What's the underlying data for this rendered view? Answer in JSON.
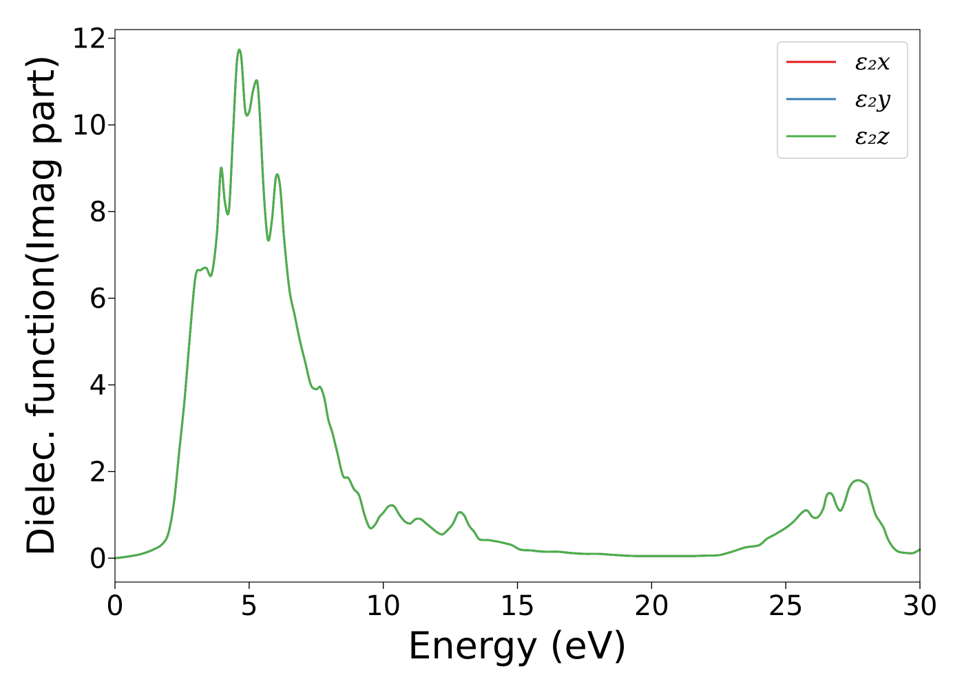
{
  "chart_data": {
    "type": "line",
    "title": "",
    "xlabel": "Energy (eV)",
    "ylabel": "Dielec. function(Imag part)",
    "xlim": [
      0,
      30
    ],
    "ylim": [
      -0.55,
      12.2
    ],
    "xticks": [
      0,
      5,
      10,
      15,
      20,
      25,
      30
    ],
    "yticks": [
      0,
      2,
      4,
      6,
      8,
      10,
      12
    ],
    "grid": false,
    "legend_position": "top-right",
    "x": [
      0,
      0.5,
      1.0,
      1.5,
      1.8,
      2.0,
      2.2,
      2.4,
      2.6,
      2.8,
      3.0,
      3.2,
      3.4,
      3.6,
      3.8,
      3.95,
      4.1,
      4.25,
      4.4,
      4.55,
      4.7,
      4.85,
      5.0,
      5.15,
      5.3,
      5.4,
      5.55,
      5.7,
      5.85,
      6.0,
      6.15,
      6.3,
      6.5,
      6.7,
      6.9,
      7.1,
      7.3,
      7.5,
      7.65,
      7.8,
      7.95,
      8.1,
      8.3,
      8.5,
      8.7,
      8.9,
      9.1,
      9.3,
      9.5,
      9.7,
      9.85,
      10.0,
      10.2,
      10.4,
      10.6,
      10.8,
      11.0,
      11.2,
      11.4,
      11.6,
      11.8,
      12.0,
      12.2,
      12.4,
      12.6,
      12.8,
      13.0,
      13.2,
      13.4,
      13.55,
      13.7,
      13.9,
      14.1,
      14.3,
      14.5,
      14.8,
      15.1,
      15.5,
      16.0,
      16.5,
      17.0,
      17.5,
      18.0,
      18.5,
      19.0,
      19.5,
      20.0,
      20.5,
      21.0,
      21.5,
      22.0,
      22.5,
      23.0,
      23.5,
      24.0,
      24.3,
      24.6,
      25.0,
      25.3,
      25.6,
      25.8,
      26.0,
      26.2,
      26.4,
      26.5,
      26.6,
      26.75,
      26.9,
      27.05,
      27.2,
      27.35,
      27.5,
      27.7,
      27.9,
      28.05,
      28.2,
      28.35,
      28.5,
      28.65,
      28.8,
      29.0,
      29.2,
      29.5,
      29.75,
      30.0
    ],
    "series": [
      {
        "name": "ε₂x",
        "color": "#e41a1c",
        "values": [
          0.0,
          0.04,
          0.1,
          0.22,
          0.35,
          0.6,
          1.3,
          2.5,
          3.7,
          5.2,
          6.5,
          6.65,
          6.7,
          6.55,
          7.5,
          9.0,
          8.2,
          8.05,
          9.8,
          11.5,
          11.6,
          10.35,
          10.3,
          10.8,
          11.0,
          10.2,
          8.4,
          7.35,
          7.8,
          8.8,
          8.6,
          7.4,
          6.2,
          5.6,
          5.0,
          4.5,
          4.0,
          3.9,
          3.95,
          3.7,
          3.2,
          2.9,
          2.4,
          1.9,
          1.85,
          1.6,
          1.45,
          1.0,
          0.7,
          0.78,
          0.95,
          1.05,
          1.2,
          1.2,
          1.0,
          0.85,
          0.8,
          0.9,
          0.9,
          0.8,
          0.7,
          0.6,
          0.55,
          0.65,
          0.8,
          1.05,
          1.0,
          0.75,
          0.6,
          0.45,
          0.42,
          0.42,
          0.4,
          0.38,
          0.35,
          0.3,
          0.2,
          0.18,
          0.15,
          0.15,
          0.12,
          0.1,
          0.1,
          0.08,
          0.06,
          0.05,
          0.05,
          0.05,
          0.05,
          0.05,
          0.06,
          0.07,
          0.15,
          0.25,
          0.3,
          0.45,
          0.55,
          0.7,
          0.85,
          1.05,
          1.1,
          0.95,
          0.95,
          1.15,
          1.4,
          1.5,
          1.45,
          1.2,
          1.1,
          1.3,
          1.6,
          1.75,
          1.8,
          1.75,
          1.65,
          1.3,
          1.0,
          0.85,
          0.7,
          0.45,
          0.25,
          0.15,
          0.12,
          0.12,
          0.2
        ]
      },
      {
        "name": "ε₂y",
        "color": "#377eb8",
        "values": [
          0.0,
          0.04,
          0.1,
          0.22,
          0.35,
          0.6,
          1.3,
          2.5,
          3.7,
          5.2,
          6.5,
          6.65,
          6.7,
          6.55,
          7.5,
          9.0,
          8.2,
          8.05,
          9.8,
          11.5,
          11.6,
          10.35,
          10.3,
          10.8,
          11.0,
          10.2,
          8.4,
          7.35,
          7.8,
          8.8,
          8.6,
          7.4,
          6.2,
          5.6,
          5.0,
          4.5,
          4.0,
          3.9,
          3.95,
          3.7,
          3.2,
          2.9,
          2.4,
          1.9,
          1.85,
          1.6,
          1.45,
          1.0,
          0.7,
          0.78,
          0.95,
          1.05,
          1.2,
          1.2,
          1.0,
          0.85,
          0.8,
          0.9,
          0.9,
          0.8,
          0.7,
          0.6,
          0.55,
          0.65,
          0.8,
          1.05,
          1.0,
          0.75,
          0.6,
          0.45,
          0.42,
          0.42,
          0.4,
          0.38,
          0.35,
          0.3,
          0.2,
          0.18,
          0.15,
          0.15,
          0.12,
          0.1,
          0.1,
          0.08,
          0.06,
          0.05,
          0.05,
          0.05,
          0.05,
          0.05,
          0.06,
          0.07,
          0.15,
          0.25,
          0.3,
          0.45,
          0.55,
          0.7,
          0.85,
          1.05,
          1.1,
          0.95,
          0.95,
          1.15,
          1.4,
          1.5,
          1.45,
          1.2,
          1.1,
          1.3,
          1.6,
          1.75,
          1.8,
          1.75,
          1.65,
          1.3,
          1.0,
          0.85,
          0.7,
          0.45,
          0.25,
          0.15,
          0.12,
          0.12,
          0.2
        ]
      },
      {
        "name": "ε₂z",
        "color": "#4daf4a",
        "values": [
          0.0,
          0.04,
          0.1,
          0.22,
          0.35,
          0.6,
          1.3,
          2.5,
          3.7,
          5.2,
          6.5,
          6.65,
          6.7,
          6.55,
          7.5,
          9.0,
          8.2,
          8.05,
          9.8,
          11.5,
          11.6,
          10.35,
          10.3,
          10.8,
          11.0,
          10.2,
          8.4,
          7.35,
          7.8,
          8.8,
          8.6,
          7.4,
          6.2,
          5.6,
          5.0,
          4.5,
          4.0,
          3.9,
          3.95,
          3.7,
          3.2,
          2.9,
          2.4,
          1.9,
          1.85,
          1.6,
          1.45,
          1.0,
          0.7,
          0.78,
          0.95,
          1.05,
          1.2,
          1.2,
          1.0,
          0.85,
          0.8,
          0.9,
          0.9,
          0.8,
          0.7,
          0.6,
          0.55,
          0.65,
          0.8,
          1.05,
          1.0,
          0.75,
          0.6,
          0.45,
          0.42,
          0.42,
          0.4,
          0.38,
          0.35,
          0.3,
          0.2,
          0.18,
          0.15,
          0.15,
          0.12,
          0.1,
          0.1,
          0.08,
          0.06,
          0.05,
          0.05,
          0.05,
          0.05,
          0.05,
          0.06,
          0.07,
          0.15,
          0.25,
          0.3,
          0.45,
          0.55,
          0.7,
          0.85,
          1.05,
          1.1,
          0.95,
          0.95,
          1.15,
          1.4,
          1.5,
          1.45,
          1.2,
          1.1,
          1.3,
          1.6,
          1.75,
          1.8,
          1.75,
          1.65,
          1.3,
          1.0,
          0.85,
          0.7,
          0.45,
          0.25,
          0.15,
          0.12,
          0.12,
          0.2
        ]
      }
    ]
  }
}
